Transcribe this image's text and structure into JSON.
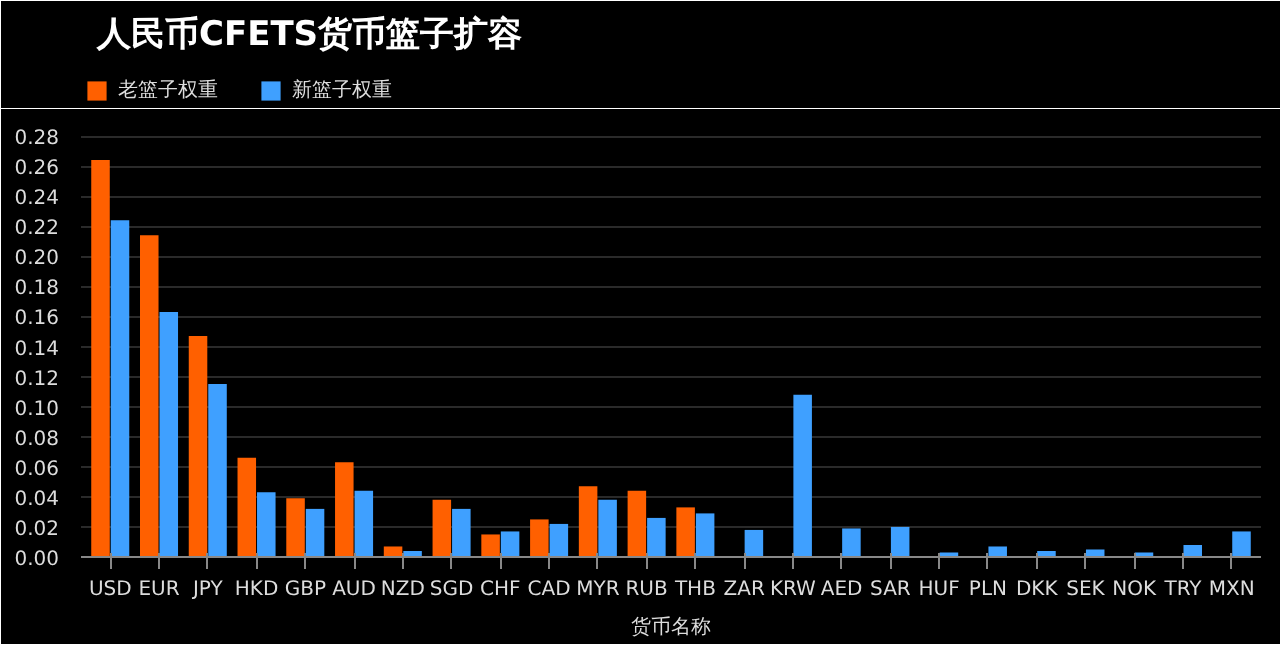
{
  "chart_data": {
    "type": "bar",
    "title": "人民币CFETS货币篮子扩容",
    "xlabel": "货币名称",
    "categories": [
      "USD",
      "EUR",
      "JPY",
      "HKD",
      "GBP",
      "AUD",
      "NZD",
      "SGD",
      "CHF",
      "CAD",
      "MYR",
      "RUB",
      "THB",
      "ZAR",
      "KRW",
      "AED",
      "SAR",
      "HUF",
      "PLN",
      "DKK",
      "SEK",
      "NOK",
      "TRY",
      "MXN"
    ],
    "series": [
      {
        "name": "老篮子权重",
        "color": "#ff6000",
        "values": [
          0.264,
          0.214,
          0.147,
          0.066,
          0.039,
          0.063,
          0.007,
          0.038,
          0.015,
          0.025,
          0.047,
          0.044,
          0.033,
          null,
          null,
          null,
          null,
          null,
          null,
          null,
          null,
          null,
          null,
          null
        ]
      },
      {
        "name": "新篮子权重",
        "color": "#3fa0ff",
        "values": [
          0.224,
          0.163,
          0.115,
          0.043,
          0.032,
          0.044,
          0.004,
          0.032,
          0.017,
          0.022,
          0.038,
          0.026,
          0.029,
          0.018,
          0.108,
          0.019,
          0.02,
          0.003,
          0.007,
          0.004,
          0.005,
          0.003,
          0.008,
          0.017
        ]
      }
    ],
    "ylim": [
      0,
      0.29
    ],
    "yticks": [
      {
        "value": 0,
        "label": "0.00"
      },
      {
        "value": 0.02,
        "label": "0.02"
      },
      {
        "value": 0.04,
        "label": "0.04"
      },
      {
        "value": 0.06,
        "label": "0.06"
      },
      {
        "value": 0.08,
        "label": "0.08"
      },
      {
        "value": 0.1,
        "label": "0.10"
      },
      {
        "value": 0.12,
        "label": "0.12"
      },
      {
        "value": 0.14,
        "label": "0.14"
      },
      {
        "value": 0.16,
        "label": "0.16"
      },
      {
        "value": 0.18,
        "label": "0.18"
      },
      {
        "value": 0.2,
        "label": "0.20"
      },
      {
        "value": 0.22,
        "label": "0.22"
      },
      {
        "value": 0.24,
        "label": "0.24"
      },
      {
        "value": 0.26,
        "label": "0.26"
      },
      {
        "value": 0.28,
        "label": "0.28"
      }
    ],
    "grid": "y",
    "legend": "top left"
  }
}
